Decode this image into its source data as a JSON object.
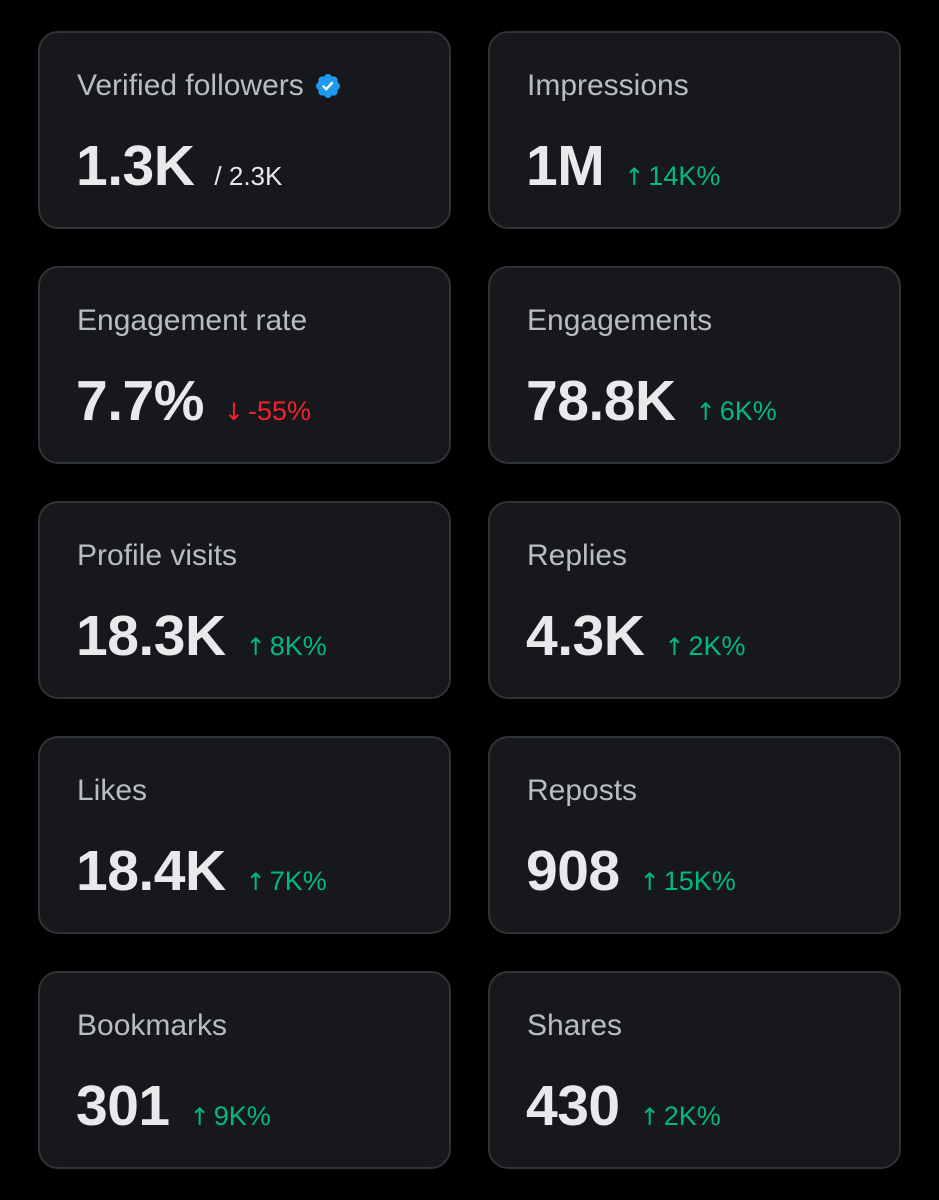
{
  "colors": {
    "background": "#000000",
    "card": "#16181c",
    "card_border": "#2f3336",
    "label": "#b9bcc0",
    "value": "#e7e9ea",
    "positive": "#00ba7c",
    "negative": "#f4212e",
    "verified_badge": "#1d9bf0"
  },
  "cards": [
    {
      "label": "Verified followers",
      "value": "1.3K",
      "secondary": "/ 2.3K",
      "icon": "verified-badge-icon"
    },
    {
      "label": "Impressions",
      "value": "1M",
      "change": "14K%",
      "direction": "up",
      "arrow": "↑"
    },
    {
      "label": "Engagement rate",
      "value": "7.7%",
      "change": "-55%",
      "direction": "down",
      "arrow": "↓"
    },
    {
      "label": "Engagements",
      "value": "78.8K",
      "change": "6K%",
      "direction": "up",
      "arrow": "↑"
    },
    {
      "label": "Profile visits",
      "value": "18.3K",
      "change": "8K%",
      "direction": "up",
      "arrow": "↑"
    },
    {
      "label": "Replies",
      "value": "4.3K",
      "change": "2K%",
      "direction": "up",
      "arrow": "↑"
    },
    {
      "label": "Likes",
      "value": "18.4K",
      "change": "7K%",
      "direction": "up",
      "arrow": "↑"
    },
    {
      "label": "Reposts",
      "value": "908",
      "change": "15K%",
      "direction": "up",
      "arrow": "↑"
    },
    {
      "label": "Bookmarks",
      "value": "301",
      "change": "9K%",
      "direction": "up",
      "arrow": "↑"
    },
    {
      "label": "Shares",
      "value": "430",
      "change": "2K%",
      "direction": "up",
      "arrow": "↑"
    }
  ]
}
